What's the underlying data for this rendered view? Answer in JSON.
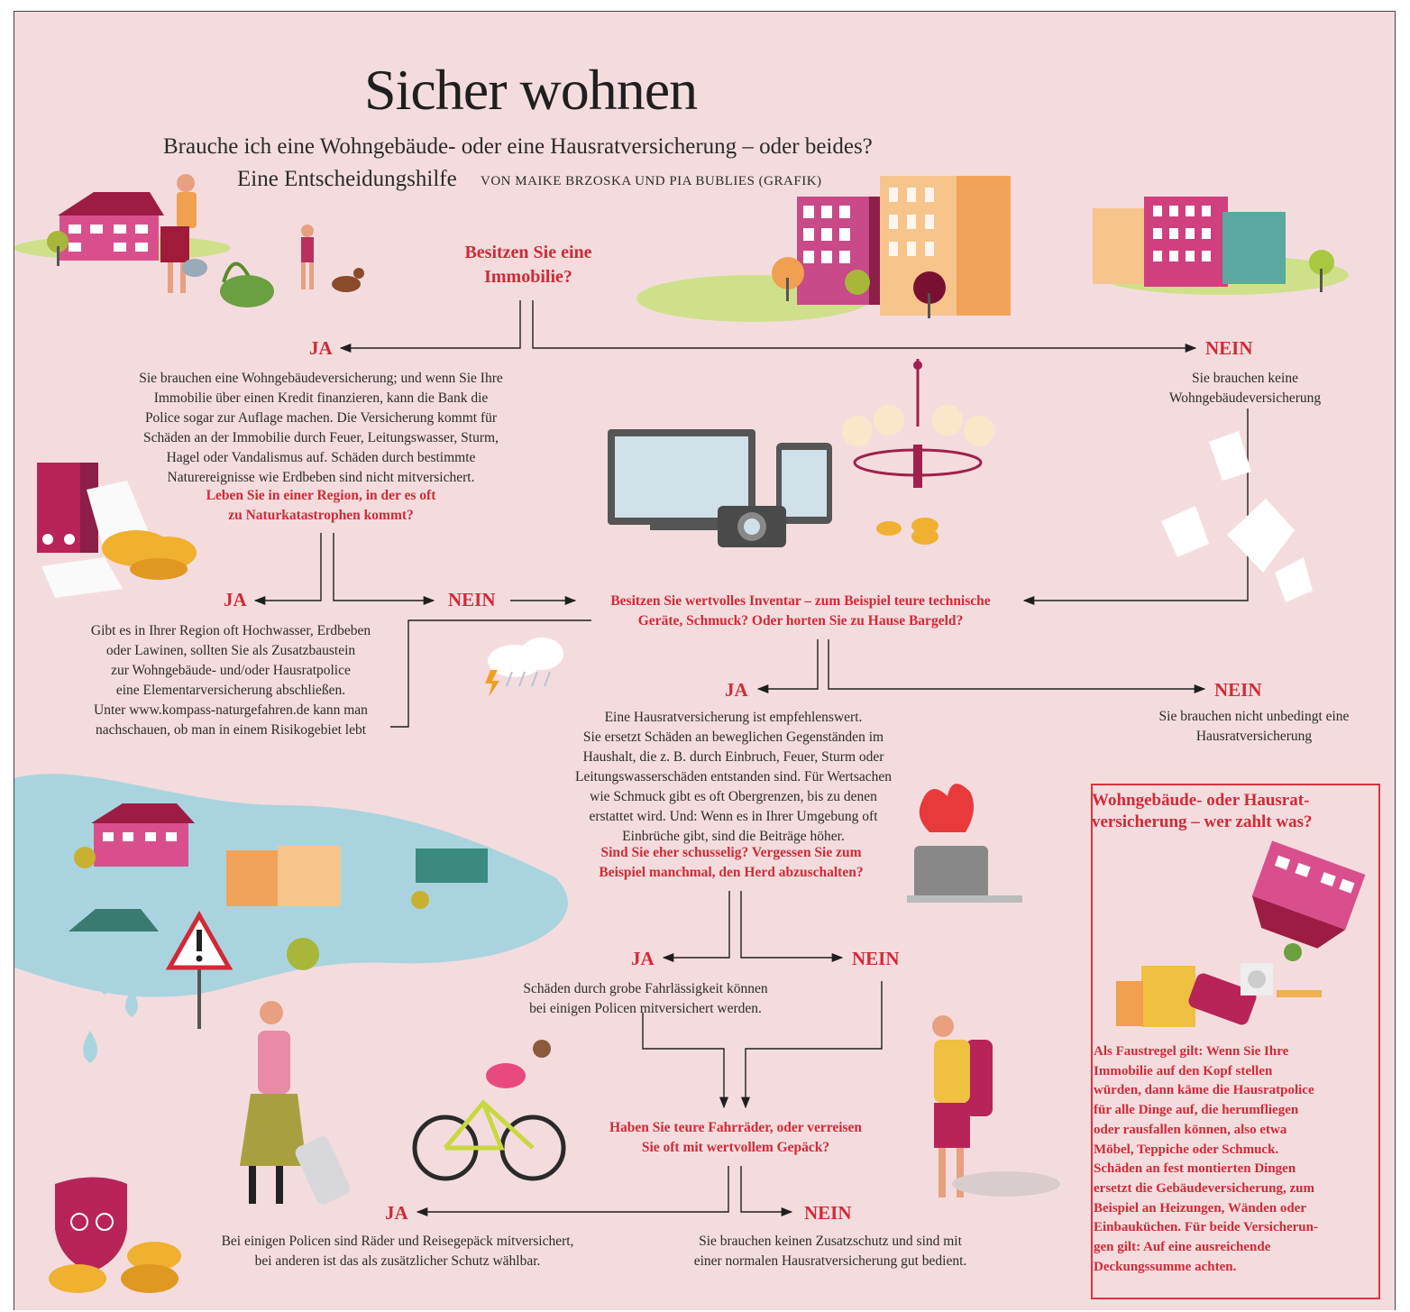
{
  "header": {
    "title": "Sicher wohnen",
    "subtitle": "Brauche ich eine Wohngebäude- oder eine Hausratversicherung – oder beides?",
    "subtitle2": "Eine Entscheidungshilfe",
    "byline": "VON MAIKE BRZOSKA UND PIA BUBLIES (GRAFIK)"
  },
  "flow": {
    "q1": "Besitzen Sie eine\nImmobilie?",
    "q1_yes": "JA",
    "q1_no": "NEIN",
    "q1_yes_text": "Sie brauchen eine Wohngebäudeversicherung; und wenn Sie Ihre\nImmobilie über einen Kredit finanzieren, kann die Bank die\nPolice sogar zur Auflage machen. Die Versicherung kommt für\nSchäden an der Immobilie durch Feuer, Leitungswasser, Sturm,\nHagel oder Vandalismus auf. Schäden durch bestimmte\nNaturereignisse wie Erdbeben sind nicht mitversichert.",
    "q2": "Leben Sie in einer Region, in der es oft\nzu Naturkatastrophen kommt?",
    "q1_no_text": "Sie brauchen keine\nWohngebäudeversicherung",
    "q2_yes": "JA",
    "q2_no": "NEIN",
    "q2_yes_text": "Gibt es in Ihrer Region oft Hochwasser, Erdbeben\noder Lawinen, sollten Sie als Zusatzbaustein\nzur Wohngebäude- und/oder Hausratpolice\neine Elementarversicherung abschließen.\nUnter www.kompass-naturgefahren.de kann man\nnachschauen, ob man in einem Risikogebiet lebt",
    "q3": "Besitzen Sie wertvolles Inventar – zum Beispiel teure technische\nGeräte, Schmuck? Oder horten Sie zu Hause Bargeld?",
    "q3_yes": "JA",
    "q3_no": "NEIN",
    "q3_yes_text": "Eine Hausratversicherung ist empfehlenswert.\nSie ersetzt Schäden an beweglichen Gegenständen im\nHaushalt, die z. B. durch Einbruch, Feuer, Sturm oder\nLeitungswasserschäden entstanden sind. Für Wertsachen\nwie Schmuck gibt es oft Obergrenzen, bis zu denen\nerstattet wird. Und: Wenn es in Ihrer Umgebung oft\nEinbrüche gibt, sind die Beiträge höher.",
    "q3_no_text": "Sie brauchen nicht unbedingt eine\nHausratversicherung",
    "q4": "Sind Sie eher schusselig? Vergessen Sie zum\nBeispiel manchmal, den Herd abzuschalten?",
    "q4_yes": "JA",
    "q4_no": "NEIN",
    "q4_yes_text": "Schäden durch grobe Fahrlässigkeit können\nbei einigen Policen mitversichert werden.",
    "q5": "Haben Sie teure Fahrräder, oder verreisen\nSie oft mit wertvollem Gepäck?",
    "q5_yes": "JA",
    "q5_no": "NEIN",
    "q5_yes_text": "Bei einigen Policen sind Räder und Reisegepäck mitversichert,\nbei anderen ist das als zusätzlicher Schutz wählbar.",
    "q5_no_text": "Sie brauchen keinen Zusatzschutz und sind mit\neiner normalen Hausratversicherung gut bedient."
  },
  "infobox": {
    "title": "Wohngebäude- oder Hausrat-\nversicherung – wer zahlt was?",
    "body": "Als Faustregel gilt: Wenn Sie Ihre\nImmobilie auf den Kopf stellen\nwürden, dann käme die Hausratpolice\nfür alle Dinge auf, die herumfliegen\noder rausfallen können, also etwa\nMöbel, Teppiche oder Schmuck.\nSchäden an fest montierten Dingen\nersetzt die Gebäudeversicherung, zum\nBeispiel an Heizungen, Wänden oder\nEinbauküchen. Für beide Versicherun-\ngen gilt: Auf eine ausreichende\nDeckungssumme achten."
  },
  "colors": {
    "background": "#f4dcde",
    "accent_red": "#d02a36",
    "text": "#2a2a2a",
    "magenta": "#c8407a",
    "orange": "#f0a860",
    "water": "#a8d4e0"
  },
  "icons": [
    "house-icon",
    "apartment-buildings-icon",
    "tv-monitor-icon",
    "tablet-icon",
    "camera-icon",
    "chandelier-icon",
    "coins-icon",
    "folders-icon",
    "paper-sheets-icon",
    "storm-cloud-icon",
    "flooded-houses-icon",
    "warning-sign-icon",
    "pot-fire-icon",
    "cyclist-icon",
    "hiker-icon",
    "woman-suitcase-icon",
    "bike-shield-icon",
    "upside-down-house-icon"
  ]
}
